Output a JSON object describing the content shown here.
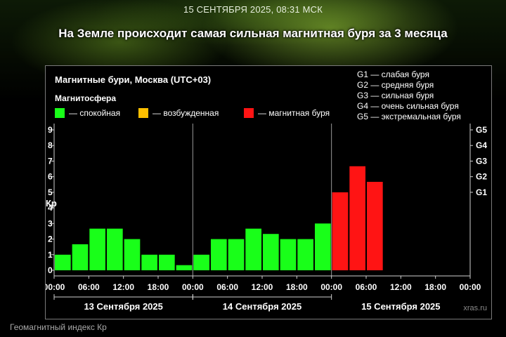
{
  "header": {
    "timestamp": "15 СЕНТЯБРЯ 2025, 08:31 МСК",
    "headline": "На Земле происходит самая сильная магнитная буря за 3 месяца"
  },
  "caption": "Геомагнитный индекс Кр",
  "chart_data": {
    "type": "bar",
    "title": "Магнитные бури, Москва (UTC+03)",
    "legend_title": "Магнитосфера",
    "legend": [
      {
        "label": "— спокойная",
        "color": "#19ff19"
      },
      {
        "label": "— возбужденная",
        "color": "#ffc000"
      },
      {
        "label": "— магнитная буря",
        "color": "#ff1414"
      }
    ],
    "storm_levels": [
      {
        "code": "G1",
        "kp": 5,
        "label": "G1 — слабая буря"
      },
      {
        "code": "G2",
        "kp": 6,
        "label": "G2 — средняя буря"
      },
      {
        "code": "G3",
        "kp": 7,
        "label": "G3 — сильная буря"
      },
      {
        "code": "G4",
        "kp": 8,
        "label": "G4 — очень сильная буря"
      },
      {
        "code": "G5",
        "kp": 9,
        "label": "G5 — экстремальная буря"
      }
    ],
    "ylabel": "Кр",
    "ylim": [
      0,
      9
    ],
    "yticks": [
      "0",
      "1",
      "2",
      "3",
      "4",
      "5",
      "6",
      "7",
      "8",
      "9"
    ],
    "xticks": [
      "00:00",
      "06:00",
      "12:00",
      "18:00",
      "00:00",
      "06:00",
      "12:00",
      "18:00",
      "00:00",
      "06:00",
      "12:00",
      "18:00",
      "00:00"
    ],
    "days": [
      "13 Сентября 2025",
      "14 Сентября 2025",
      "15 Сентября 2025"
    ],
    "slots_per_day": 8,
    "values": [
      1.0,
      1.67,
      2.67,
      2.67,
      2.0,
      1.0,
      1.0,
      0.33,
      1.0,
      2.0,
      2.0,
      2.67,
      2.33,
      2.0,
      2.0,
      3.0,
      5.0,
      6.67,
      5.67
    ],
    "levels": [
      "quiet",
      "quiet",
      "quiet",
      "quiet",
      "quiet",
      "quiet",
      "quiet",
      "quiet",
      "quiet",
      "quiet",
      "quiet",
      "quiet",
      "quiet",
      "quiet",
      "quiet",
      "quiet",
      "storm",
      "storm",
      "storm"
    ],
    "level_colors": {
      "quiet": "#19ff19",
      "active": "#ffc000",
      "storm": "#ff1414"
    },
    "watermark": "xras.ru"
  }
}
